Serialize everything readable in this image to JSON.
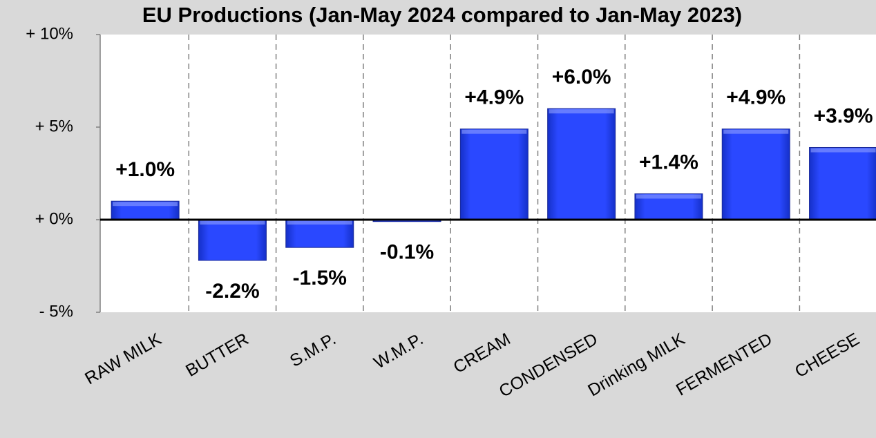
{
  "chart_data": {
    "type": "bar",
    "title": "EU Productions  (Jan-May  2024 compared to Jan-May  2023)",
    "categories": [
      "RAW MILK",
      "BUTTER",
      "S.M.P.",
      "W.M.P.",
      "CREAM",
      "CONDENSED",
      "Drinking MILK",
      "FERMENTED",
      "CHEESE"
    ],
    "values": [
      1.0,
      -2.2,
      -1.5,
      -0.1,
      4.9,
      6.0,
      1.4,
      4.9,
      3.9
    ],
    "value_labels": [
      "+1.0%",
      "-2.2%",
      "-1.5%",
      "-0.1%",
      "+4.9%",
      "+6.0%",
      "+1.4%",
      "+4.9%",
      "+3.9%"
    ],
    "color": "#2040f0",
    "ylim": [
      -5,
      10
    ],
    "yticks": [
      {
        "value": -5,
        "label": "- 5%"
      },
      {
        "value": 0,
        "label": "+ 0%"
      },
      {
        "value": 5,
        "label": "+ 5%"
      },
      {
        "value": 10,
        "label": "+ 10%"
      }
    ],
    "grid": false,
    "category_grid": true
  }
}
